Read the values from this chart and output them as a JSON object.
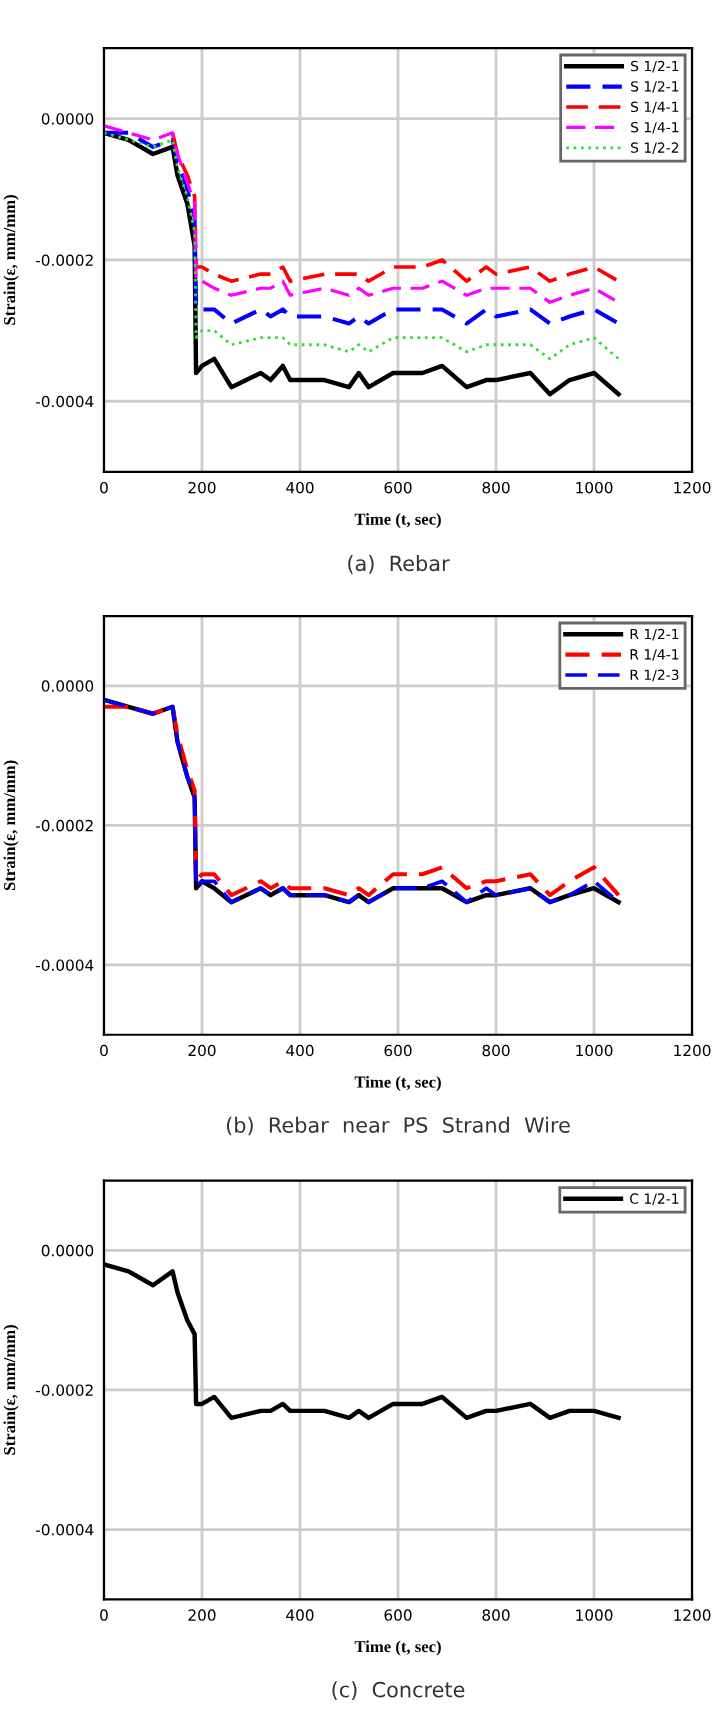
{
  "chart_data": [
    {
      "type": "line",
      "title": "(a)  Rebar",
      "xlabel": "Time (t, sec)",
      "ylabel": "Strain(ε, mm/mm)",
      "xlim": [
        0,
        1200
      ],
      "ylim": [
        -0.0005,
        0.0001
      ],
      "xticks": [
        0,
        200,
        400,
        600,
        800,
        1000,
        1200
      ],
      "yticks": [
        {
          "value": 0,
          "label": "0.0000"
        },
        {
          "value": -0.0002,
          "label": "-0.0002"
        },
        {
          "value": -0.0004,
          "label": "-0.0004"
        }
      ],
      "grid": true,
      "legend": "top right",
      "x": [
        0,
        50,
        100,
        140,
        150,
        170,
        185,
        188,
        200,
        225,
        260,
        320,
        340,
        365,
        380,
        450,
        500,
        520,
        540,
        590,
        650,
        690,
        740,
        780,
        800,
        870,
        910,
        950,
        1000,
        1050
      ],
      "series": [
        {
          "name": "S 1/2-1",
          "color": "#000000",
          "line_style": "solid",
          "values": [
            -2e-05,
            -3e-05,
            -5e-05,
            -4e-05,
            -8e-05,
            -0.00012,
            -0.00018,
            -0.00036,
            -0.00035,
            -0.00034,
            -0.00038,
            -0.00036,
            -0.00037,
            -0.00035,
            -0.00037,
            -0.00037,
            -0.00038,
            -0.00036,
            -0.00038,
            -0.00036,
            -0.00036,
            -0.00035,
            -0.00038,
            -0.00037,
            -0.00037,
            -0.00036,
            -0.00039,
            -0.00037,
            -0.00036,
            -0.00039
          ]
        },
        {
          "name": "S 1/2-1",
          "color": "#0000ff",
          "line_style": "dashed",
          "values": [
            -2e-05,
            -2e-05,
            -4e-05,
            -3e-05,
            -6e-05,
            -0.0001,
            -0.00014,
            -0.00027,
            -0.00027,
            -0.00027,
            -0.00029,
            -0.00027,
            -0.00028,
            -0.00027,
            -0.00028,
            -0.00028,
            -0.00029,
            -0.00028,
            -0.00029,
            -0.00027,
            -0.00027,
            -0.00027,
            -0.00029,
            -0.00027,
            -0.00028,
            -0.00027,
            -0.00029,
            -0.00028,
            -0.00027,
            -0.00029
          ]
        },
        {
          "name": "S 1/4-1",
          "color": "#ff0000",
          "line_style": "dashed",
          "values": [
            null,
            null,
            null,
            -2e-05,
            -5e-05,
            -8e-05,
            -0.00011,
            -0.00021,
            -0.00021,
            -0.00022,
            -0.00023,
            -0.00022,
            -0.00022,
            -0.00021,
            -0.00023,
            -0.00022,
            -0.00022,
            -0.00022,
            -0.00023,
            -0.00021,
            -0.00021,
            -0.0002,
            -0.00023,
            -0.00021,
            -0.00022,
            -0.00021,
            -0.00023,
            -0.00022,
            -0.00021,
            -0.00023
          ]
        },
        {
          "name": "S 1/4-1",
          "color": "#ff00ff",
          "line_style": "dashed",
          "values": [
            -1e-05,
            -2e-05,
            -3e-05,
            -2e-05,
            -5e-05,
            -9e-05,
            -0.00012,
            -0.00023,
            -0.00023,
            -0.00024,
            -0.00025,
            -0.00024,
            -0.00024,
            -0.00023,
            -0.00025,
            -0.00024,
            -0.00025,
            -0.00024,
            -0.00025,
            -0.00024,
            -0.00024,
            -0.00023,
            -0.00025,
            -0.00024,
            -0.00024,
            -0.00024,
            -0.00026,
            -0.00025,
            -0.00024,
            -0.00026
          ]
        },
        {
          "name": "S 1/2-2",
          "color": "#33dd33",
          "line_style": "dotted",
          "values": [
            -2e-05,
            -3e-05,
            -4e-05,
            -3e-05,
            -7e-05,
            -0.00011,
            -0.00016,
            -0.00031,
            -0.0003,
            -0.0003,
            -0.00032,
            -0.00031,
            -0.00031,
            -0.00031,
            -0.00032,
            -0.00032,
            -0.00033,
            -0.00032,
            -0.00033,
            -0.00031,
            -0.00031,
            -0.00031,
            -0.00033,
            -0.00032,
            -0.00032,
            -0.00032,
            -0.00034,
            -0.00032,
            -0.00031,
            -0.00034
          ]
        }
      ]
    },
    {
      "type": "line",
      "title": "(b)  Rebar  near  PS  Strand  Wire",
      "xlabel": "Time (t, sec)",
      "ylabel": "Strain(ε, mm/mm)",
      "xlim": [
        0,
        1200
      ],
      "ylim": [
        -0.0005,
        0.0001
      ],
      "xticks": [
        0,
        200,
        400,
        600,
        800,
        1000,
        1200
      ],
      "yticks": [
        {
          "value": 0,
          "label": "0.0000"
        },
        {
          "value": -0.0002,
          "label": "-0.0002"
        },
        {
          "value": -0.0004,
          "label": "-0.0004"
        }
      ],
      "grid": true,
      "legend": "top right",
      "x": [
        0,
        50,
        100,
        140,
        150,
        170,
        185,
        188,
        200,
        225,
        260,
        320,
        340,
        365,
        380,
        450,
        500,
        520,
        540,
        590,
        650,
        690,
        740,
        780,
        800,
        870,
        910,
        950,
        1000,
        1050
      ],
      "series": [
        {
          "name": "R 1/2-1",
          "color": "#000000",
          "line_style": "solid",
          "values": [
            -2e-05,
            -3e-05,
            -4e-05,
            -3e-05,
            -8e-05,
            -0.00013,
            -0.00016,
            -0.00029,
            -0.00028,
            -0.00029,
            -0.00031,
            -0.00029,
            -0.0003,
            -0.00029,
            -0.0003,
            -0.0003,
            -0.00031,
            -0.0003,
            -0.00031,
            -0.00029,
            -0.00029,
            -0.00029,
            -0.00031,
            -0.0003,
            -0.0003,
            -0.00029,
            -0.00031,
            -0.0003,
            -0.00029,
            -0.00031
          ]
        },
        {
          "name": "R 1/4-1",
          "color": "#ff0000",
          "line_style": "dashed",
          "values": [
            -3e-05,
            -3e-05,
            -4e-05,
            -3e-05,
            -7e-05,
            -0.00012,
            -0.00015,
            -0.00028,
            -0.00027,
            -0.00027,
            -0.0003,
            -0.00028,
            -0.00029,
            -0.00028,
            -0.00029,
            -0.00029,
            -0.0003,
            -0.00029,
            -0.0003,
            -0.00027,
            -0.00027,
            -0.00026,
            -0.00029,
            -0.00028,
            -0.00028,
            -0.00027,
            -0.0003,
            -0.00028,
            -0.00026,
            -0.0003
          ]
        },
        {
          "name": "R 1/2-3",
          "color": "#0000ff",
          "line_style": "dashed",
          "values": [
            -2e-05,
            -3e-05,
            -4e-05,
            -3e-05,
            -8e-05,
            -0.00013,
            -0.00016,
            -0.00029,
            -0.00028,
            -0.00028,
            -0.00031,
            -0.00029,
            -0.0003,
            -0.00029,
            -0.0003,
            -0.0003,
            -0.00031,
            -0.0003,
            -0.00031,
            -0.00029,
            -0.00029,
            -0.00028,
            -0.00031,
            -0.00029,
            -0.0003,
            -0.00029,
            -0.00031,
            -0.0003,
            -0.00028,
            -0.00031
          ]
        }
      ]
    },
    {
      "type": "line",
      "title": "(c)  Concrete",
      "xlabel": "Time (t, sec)",
      "ylabel": "Strain(ε, mm/mm)",
      "xlim": [
        0,
        1200
      ],
      "ylim": [
        -0.0005,
        0.0001
      ],
      "xticks": [
        0,
        200,
        400,
        600,
        800,
        1000,
        1200
      ],
      "yticks": [
        {
          "value": 0,
          "label": "0.0000"
        },
        {
          "value": -0.0002,
          "label": "-0.0002"
        },
        {
          "value": -0.0004,
          "label": "-0.0004"
        }
      ],
      "grid": true,
      "legend": "top right",
      "x": [
        0,
        50,
        100,
        140,
        150,
        170,
        185,
        188,
        200,
        225,
        260,
        320,
        340,
        365,
        380,
        450,
        500,
        520,
        540,
        590,
        650,
        690,
        740,
        780,
        800,
        870,
        910,
        950,
        1000,
        1050
      ],
      "series": [
        {
          "name": "C 1/2-1",
          "color": "#000000",
          "line_style": "solid",
          "values": [
            -2e-05,
            -3e-05,
            -5e-05,
            -3e-05,
            -6e-05,
            -0.0001,
            -0.00012,
            -0.00022,
            -0.00022,
            -0.00021,
            -0.00024,
            -0.00023,
            -0.00023,
            -0.00022,
            -0.00023,
            -0.00023,
            -0.00024,
            -0.00023,
            -0.00024,
            -0.00022,
            -0.00022,
            -0.00021,
            -0.00024,
            -0.00023,
            -0.00023,
            -0.00022,
            -0.00024,
            -0.00023,
            -0.00023,
            -0.00024
          ]
        }
      ]
    }
  ]
}
